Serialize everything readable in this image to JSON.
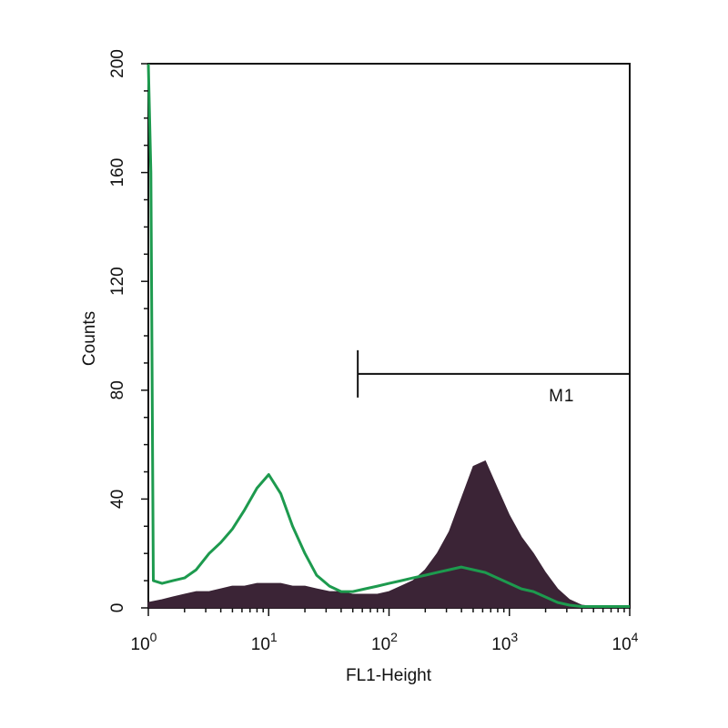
{
  "chart_data": {
    "type": "area",
    "xlabel": "FL1-Height",
    "ylabel": "Counts",
    "x_scale": "log",
    "xlim": [
      1,
      10000
    ],
    "ylim": [
      0,
      200
    ],
    "x_ticks": [
      {
        "value": 1,
        "base": "10",
        "exp": "0"
      },
      {
        "value": 10,
        "base": "10",
        "exp": "1"
      },
      {
        "value": 100,
        "base": "10",
        "exp": "2"
      },
      {
        "value": 1000,
        "base": "10",
        "exp": "3"
      },
      {
        "value": 10000,
        "base": "10",
        "exp": "4"
      }
    ],
    "y_ticks": [
      0,
      40,
      80,
      120,
      160,
      200
    ],
    "grid": false,
    "series": [
      {
        "style": "filled",
        "color": "#3b2436",
        "x": [
          1.0,
          1.3,
          1.6,
          2.0,
          2.5,
          3.2,
          4.0,
          5.0,
          6.3,
          8.0,
          10,
          12.6,
          15.8,
          20,
          25,
          32,
          40,
          50,
          63,
          80,
          100,
          126,
          158,
          200,
          251,
          316,
          398,
          501,
          631,
          794,
          1000,
          1259,
          1585,
          1995,
          2512,
          3162,
          3981,
          5012,
          6310,
          7943,
          10000
        ],
        "y": [
          2,
          3,
          4,
          5,
          6,
          6,
          7,
          8,
          8,
          9,
          9,
          9,
          8,
          8,
          7,
          6,
          6,
          5,
          5,
          5,
          6,
          8,
          10,
          14,
          20,
          28,
          40,
          52,
          54,
          44,
          34,
          26,
          20,
          13,
          7,
          3,
          1,
          0.5,
          0,
          0,
          0
        ]
      },
      {
        "style": "line",
        "color": "#1d9a4e",
        "x": [
          1.0,
          1.05,
          1.1,
          1.3,
          1.6,
          2.0,
          2.5,
          3.2,
          4.0,
          5.0,
          6.3,
          8.0,
          10,
          12.6,
          15.8,
          20,
          25,
          32,
          40,
          50,
          63,
          80,
          100,
          126,
          158,
          200,
          251,
          316,
          398,
          501,
          631,
          794,
          1000,
          1259,
          1585,
          1995,
          2512,
          3162,
          3981,
          5012,
          6310,
          7943,
          10000
        ],
        "y": [
          200,
          160,
          10,
          9,
          10,
          11,
          14,
          20,
          24,
          29,
          36,
          44,
          49,
          42,
          30,
          20,
          12,
          8,
          6,
          6,
          7,
          8,
          9,
          10,
          11,
          12,
          13,
          14,
          15,
          14,
          13,
          11,
          9,
          7,
          6,
          4,
          2,
          1,
          0.5,
          0.5,
          0.5,
          0.5,
          0.5
        ]
      }
    ],
    "markers": [
      {
        "label": "M1",
        "x_start": 55,
        "x_end": 10000,
        "y": 86
      }
    ]
  }
}
